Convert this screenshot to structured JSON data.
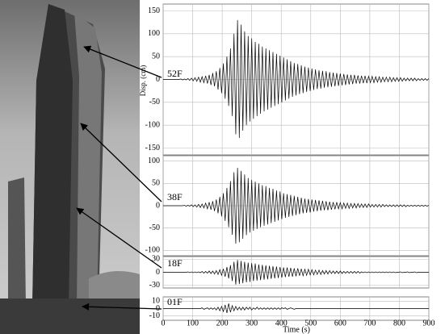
{
  "chart_data": {
    "type": "line",
    "y_label": "Disp. (cm)",
    "x_label": "Time (s)",
    "xlim": [
      0,
      900
    ],
    "xticks": [
      0,
      100,
      200,
      300,
      400,
      500,
      600,
      700,
      800,
      900
    ],
    "grid": true,
    "x": [
      0,
      6,
      12,
      18,
      24,
      30,
      36,
      42,
      48,
      54,
      60,
      66,
      72,
      78,
      84,
      90,
      96,
      102,
      108,
      114,
      120,
      126,
      132,
      138,
      144,
      150,
      156,
      162,
      168,
      174,
      180,
      186,
      192,
      198,
      204,
      210,
      216,
      222,
      228,
      234,
      240,
      246,
      252,
      258,
      264,
      270,
      276,
      282,
      288,
      294,
      300,
      306,
      312,
      318,
      324,
      330,
      336,
      342,
      348,
      354,
      360,
      366,
      372,
      378,
      384,
      390,
      396,
      402,
      408,
      414,
      420,
      426,
      432,
      438,
      444,
      450,
      456,
      462,
      468,
      474,
      480,
      486,
      492,
      498,
      504,
      510,
      516,
      522,
      528,
      534,
      540,
      546,
      552,
      558,
      564,
      570,
      576,
      582,
      588,
      594,
      600,
      606,
      612,
      618,
      624,
      630,
      636,
      642,
      648,
      654,
      660,
      666,
      672,
      678,
      684,
      690,
      696,
      702,
      708,
      714,
      720,
      726,
      732,
      738,
      744,
      750,
      756,
      762,
      768,
      774,
      780,
      786,
      792,
      798,
      804,
      810,
      816,
      822,
      828,
      834,
      840,
      846,
      852,
      858,
      864,
      870,
      876,
      882,
      888,
      894,
      900
    ],
    "series": [
      {
        "name": "52F",
        "color": "#000000",
        "ylim": [
          -165,
          165
        ],
        "yticks": [
          -150,
          -100,
          -50,
          0,
          50,
          100,
          150
        ],
        "values": [
          0,
          0,
          0,
          0,
          0,
          0,
          0,
          0,
          0,
          0,
          1,
          -1,
          1,
          -1,
          2,
          -2,
          3,
          -3,
          4,
          -4,
          5,
          -6,
          6,
          -7,
          8,
          -9,
          10,
          -12,
          14,
          -15,
          18,
          -22,
          25,
          -30,
          35,
          -42,
          50,
          -58,
          68,
          -80,
          100,
          -120,
          130,
          -128,
          120,
          -112,
          105,
          -100,
          95,
          -92,
          90,
          -86,
          82,
          -80,
          78,
          -75,
          72,
          -70,
          68,
          -66,
          64,
          -62,
          60,
          -58,
          56,
          -54,
          52,
          -50,
          48,
          -46,
          44,
          -42,
          40,
          -38,
          36,
          -35,
          34,
          -32,
          31,
          -30,
          28,
          -27,
          26,
          -25,
          24,
          -23,
          22,
          -21,
          20,
          -20,
          19,
          -18,
          18,
          -17,
          16,
          -16,
          15,
          -15,
          14,
          -14,
          13,
          -13,
          12,
          -12,
          11,
          -11,
          10,
          -10,
          10,
          -9,
          9,
          -9,
          8,
          -8,
          8,
          -8,
          7,
          -7,
          7,
          -7,
          6,
          -6,
          6,
          -6,
          5,
          -5,
          5,
          -5,
          5,
          -5,
          4,
          -4,
          4,
          -4,
          4,
          -4,
          3,
          -3,
          3,
          -3,
          3,
          -3,
          3,
          -3,
          2,
          -2,
          2,
          -2,
          2,
          -2,
          2
        ]
      },
      {
        "name": "38F",
        "color": "#000000",
        "ylim": [
          -112,
          112
        ],
        "yticks": [
          -100,
          -50,
          0,
          50,
          100
        ],
        "values": [
          0,
          0,
          0,
          0,
          0,
          0,
          0,
          0,
          0,
          0,
          0,
          0,
          1,
          -1,
          1,
          -1,
          2,
          -2,
          2,
          -3,
          3,
          -4,
          4,
          -5,
          6,
          -7,
          8,
          -9,
          10,
          -12,
          14,
          -17,
          20,
          -24,
          28,
          -34,
          40,
          -48,
          55,
          -65,
          75,
          -85,
          85,
          -82,
          78,
          -74,
          70,
          -66,
          62,
          -60,
          58,
          -56,
          54,
          -52,
          50,
          -48,
          46,
          -45,
          44,
          -42,
          40,
          -39,
          38,
          -36,
          34,
          -33,
          32,
          -30,
          28,
          -27,
          26,
          -25,
          24,
          -23,
          22,
          -21,
          20,
          -19,
          18,
          -17,
          16,
          -16,
          15,
          -15,
          14,
          -13,
          13,
          -12,
          12,
          -11,
          11,
          -10,
          10,
          -10,
          9,
          -9,
          8,
          -8,
          8,
          -7,
          7,
          -7,
          6,
          -6,
          6,
          -6,
          5,
          -5,
          5,
          -5,
          5,
          -4,
          4,
          -4,
          4,
          -4,
          4,
          -3,
          3,
          -3,
          3,
          -3,
          3,
          -3,
          3,
          -2,
          2,
          -2,
          2,
          -2,
          2,
          -2,
          2,
          -2,
          2,
          -2,
          2,
          -2,
          1,
          -1,
          1,
          -1,
          1,
          -1,
          1,
          -1,
          1,
          -1,
          1,
          -1,
          1
        ]
      },
      {
        "name": "18F",
        "color": "#000000",
        "ylim": [
          -36,
          36
        ],
        "yticks": [
          -30,
          0,
          30
        ],
        "values": [
          0,
          0,
          0,
          0,
          0,
          0,
          0,
          0,
          0,
          0,
          0,
          0,
          0,
          0,
          1,
          -1,
          1,
          -1,
          1,
          -1,
          1,
          -1,
          2,
          -2,
          2,
          -2,
          3,
          -3,
          3,
          -4,
          4,
          -5,
          6,
          -7,
          8,
          -10,
          12,
          -14,
          16,
          -20,
          24,
          -28,
          28,
          -27,
          26,
          -25,
          24,
          -23,
          22,
          -22,
          21,
          -20,
          20,
          -19,
          18,
          -18,
          17,
          -17,
          16,
          -16,
          15,
          -15,
          14,
          -14,
          13,
          -13,
          12,
          -12,
          11,
          -11,
          11,
          -10,
          10,
          -10,
          9,
          -9,
          9,
          -8,
          8,
          -8,
          7,
          -7,
          7,
          -6,
          6,
          -6,
          5,
          -5,
          5,
          -5,
          4,
          -4,
          4,
          -4,
          4,
          -3,
          3,
          -3,
          3,
          -3,
          3,
          -3,
          2,
          -2,
          2,
          -2,
          2,
          -2,
          2,
          -2,
          2,
          -2,
          1,
          -1,
          1,
          -1,
          1,
          -1,
          1,
          -1,
          1,
          -1,
          1,
          -1,
          1,
          -1,
          1,
          -1,
          1,
          -1,
          1,
          -1,
          0,
          0,
          1,
          -1,
          0,
          0,
          1,
          -1,
          0,
          0,
          1,
          -1,
          0,
          0,
          0,
          0,
          0,
          0,
          0
        ]
      },
      {
        "name": "01F",
        "color": "#000000",
        "ylim": [
          -16,
          16
        ],
        "yticks": [
          -10,
          0,
          10
        ],
        "values": [
          0,
          0,
          0,
          0,
          0,
          0,
          0,
          0,
          0,
          0,
          0,
          0,
          0,
          0,
          0,
          0,
          0,
          0,
          0,
          0,
          0,
          0,
          1,
          -1,
          0,
          1,
          -1,
          1,
          -1,
          1,
          -2,
          2,
          -3,
          3,
          -4,
          5,
          -6,
          7,
          -5,
          4,
          -3,
          3,
          -2,
          2,
          -2,
          2,
          -2,
          2,
          -1,
          2,
          -2,
          1,
          -1,
          2,
          -1,
          1,
          -1,
          1,
          -1,
          1,
          -1,
          1,
          -1,
          1,
          -1,
          1,
          -1,
          1,
          0,
          1,
          -1,
          0,
          1,
          0,
          -1,
          0,
          0,
          0,
          0,
          0,
          0,
          0,
          0,
          0,
          0,
          0,
          0,
          0,
          0,
          0,
          0,
          0,
          0,
          0,
          0,
          0,
          0,
          0,
          0,
          0,
          0,
          0,
          0,
          0,
          0,
          0,
          0,
          0,
          0,
          0,
          0,
          0,
          0,
          0,
          0,
          0,
          0,
          0,
          0,
          0,
          0,
          0,
          0,
          0,
          0,
          0,
          0,
          0,
          0,
          0,
          0,
          0,
          0,
          0,
          0,
          0,
          0,
          0,
          0,
          0,
          0,
          0,
          0,
          0,
          0,
          0,
          0,
          0,
          0,
          0,
          0
        ]
      }
    ]
  }
}
